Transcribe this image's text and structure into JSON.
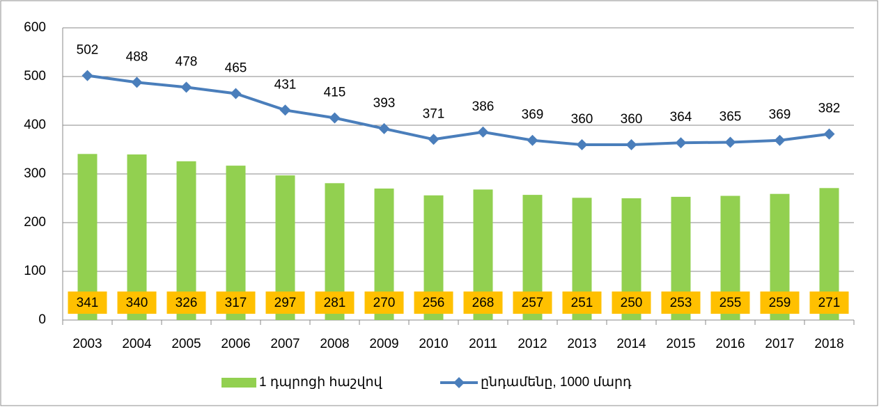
{
  "chart_data": {
    "type": "bar_line",
    "categories": [
      "2003",
      "2004",
      "2005",
      "2006",
      "2007",
      "2008",
      "2009",
      "2010",
      "2011",
      "2012",
      "2013",
      "2014",
      "2015",
      "2016",
      "2017",
      "2018"
    ],
    "series": [
      {
        "name": "1 դպրոցի հաշվով",
        "type": "bar",
        "color": "#92d050",
        "label_color": "#ffc000",
        "values": [
          341,
          340,
          326,
          317,
          297,
          281,
          270,
          256,
          268,
          257,
          251,
          250,
          253,
          255,
          259,
          271
        ]
      },
      {
        "name": "ընդամենը, 1000 մարդ",
        "type": "line",
        "color": "#4a7ebb",
        "values": [
          502,
          488,
          478,
          465,
          431,
          415,
          393,
          371,
          386,
          369,
          360,
          360,
          364,
          365,
          369,
          382
        ]
      }
    ],
    "ylim": [
      0,
      600
    ],
    "yticks": [
      0,
      100,
      200,
      300,
      400,
      500,
      600
    ],
    "grid": true,
    "legend": "bottom"
  }
}
